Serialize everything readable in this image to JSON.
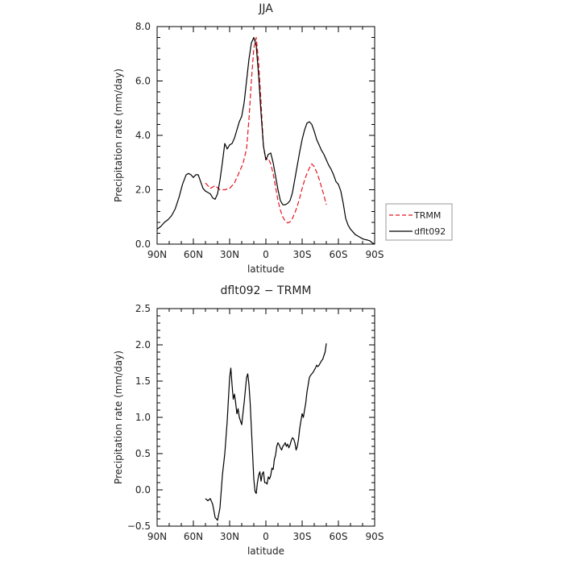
{
  "chart_data": [
    {
      "type": "line",
      "title": "JJA",
      "xlabel": "latitude",
      "ylabel": "Precipitation rate  (mm/day)",
      "x_tick_labels": [
        "90N",
        "60N",
        "30N",
        "0",
        "30S",
        "60S",
        "90S"
      ],
      "x_ticks": [
        -90,
        -60,
        -30,
        0,
        30,
        60,
        90
      ],
      "xlim": [
        -90,
        90
      ],
      "y_tick_labels": [
        "0.0",
        "2.0",
        "4.0",
        "6.0",
        "8.0"
      ],
      "y_ticks": [
        0,
        2,
        4,
        6,
        8
      ],
      "ylim": [
        0,
        8
      ],
      "legend": [
        "TRMM",
        "dflt092"
      ],
      "series": [
        {
          "name": "TRMM",
          "style": "dashed",
          "color": "#e8141e",
          "x": [
            -50,
            -46,
            -42,
            -38,
            -34,
            -30,
            -26,
            -22,
            -19,
            -16,
            -14,
            -12,
            -10,
            -8,
            -6,
            -4,
            -2,
            0,
            2,
            4,
            6,
            8,
            10,
            12,
            14,
            16,
            18,
            20,
            22,
            24,
            26,
            28,
            30,
            32,
            34,
            36,
            38,
            40,
            42,
            44,
            46,
            48,
            50
          ],
          "y": [
            2.25,
            2.05,
            2.15,
            2.0,
            2.0,
            2.05,
            2.25,
            2.65,
            2.95,
            3.5,
            4.6,
            6.0,
            7.2,
            7.6,
            6.7,
            5.2,
            3.6,
            3.1,
            3.15,
            2.95,
            2.6,
            2.1,
            1.6,
            1.25,
            1.0,
            0.85,
            0.78,
            0.82,
            0.95,
            1.15,
            1.4,
            1.7,
            2.05,
            2.35,
            2.6,
            2.8,
            2.95,
            2.85,
            2.65,
            2.4,
            2.1,
            1.8,
            1.45
          ]
        },
        {
          "name": "dflt092",
          "style": "solid",
          "color": "#000000",
          "x": [
            -90,
            -87,
            -84,
            -81,
            -78,
            -75,
            -72,
            -69,
            -66,
            -64,
            -62,
            -60,
            -58,
            -56,
            -54,
            -52,
            -50,
            -48,
            -46,
            -44,
            -42,
            -40,
            -38,
            -36,
            -34,
            -32,
            -30,
            -28,
            -26,
            -24,
            -22,
            -20,
            -18,
            -16,
            -14,
            -12,
            -10,
            -8,
            -6,
            -4,
            -2,
            0,
            2,
            4,
            6,
            8,
            10,
            12,
            14,
            16,
            18,
            20,
            22,
            24,
            26,
            28,
            30,
            32,
            34,
            36,
            38,
            40,
            42,
            44,
            46,
            48,
            50,
            52,
            54,
            56,
            58,
            60,
            62,
            64,
            66,
            68,
            70,
            72,
            74,
            76,
            78,
            80,
            82,
            84,
            86,
            88,
            90
          ],
          "y": [
            0.55,
            0.65,
            0.8,
            0.9,
            1.05,
            1.3,
            1.7,
            2.2,
            2.55,
            2.6,
            2.55,
            2.45,
            2.55,
            2.55,
            2.3,
            2.05,
            1.95,
            1.9,
            1.85,
            1.7,
            1.65,
            1.85,
            2.35,
            3.0,
            3.7,
            3.5,
            3.65,
            3.7,
            3.9,
            4.2,
            4.5,
            4.7,
            5.2,
            6.0,
            6.8,
            7.4,
            7.6,
            7.3,
            6.2,
            4.8,
            3.6,
            3.1,
            3.3,
            3.35,
            3.0,
            2.5,
            2.0,
            1.6,
            1.45,
            1.45,
            1.5,
            1.6,
            1.9,
            2.4,
            2.9,
            3.4,
            3.85,
            4.2,
            4.45,
            4.5,
            4.4,
            4.15,
            3.85,
            3.65,
            3.45,
            3.3,
            3.1,
            2.9,
            2.75,
            2.55,
            2.3,
            2.2,
            1.95,
            1.5,
            0.95,
            0.7,
            0.55,
            0.45,
            0.35,
            0.3,
            0.25,
            0.2,
            0.17,
            0.15,
            0.12,
            0.05,
            0.0
          ]
        }
      ]
    },
    {
      "type": "line",
      "title": "dflt092 − TRMM",
      "xlabel": "latitude",
      "ylabel": "Precipitation rate  (mm/day)",
      "x_tick_labels": [
        "90N",
        "60N",
        "30N",
        "0",
        "30S",
        "60S",
        "90S"
      ],
      "x_ticks": [
        -90,
        -60,
        -30,
        0,
        30,
        60,
        90
      ],
      "xlim": [
        -90,
        90
      ],
      "y_tick_labels": [
        "−0.5",
        "0.0",
        "0.5",
        "1.0",
        "1.5",
        "2.0",
        "2.5"
      ],
      "y_ticks": [
        -0.5,
        0,
        0.5,
        1.0,
        1.5,
        2.0,
        2.5
      ],
      "ylim": [
        -0.5,
        2.5
      ],
      "series": [
        {
          "style": "solid",
          "color": "#000000",
          "x": [
            -50,
            -48,
            -46,
            -44,
            -42,
            -40,
            -38,
            -36,
            -34,
            -32,
            -30,
            -29,
            -28,
            -27,
            -26,
            -25,
            -24,
            -23,
            -22,
            -20,
            -18,
            -16,
            -15,
            -14,
            -13,
            -12,
            -11,
            -10,
            -9,
            -8,
            -7,
            -6,
            -5,
            -4,
            -3,
            -2,
            -1,
            0,
            1,
            2,
            3,
            4,
            5,
            6,
            7,
            8,
            9,
            10,
            11,
            12,
            13,
            14,
            15,
            16,
            17,
            18,
            19,
            20,
            21,
            22,
            23,
            24,
            25,
            26,
            27,
            28,
            29,
            30,
            31,
            32,
            33,
            34,
            35,
            36,
            37,
            38,
            39,
            40,
            41,
            42,
            43,
            44,
            45,
            46,
            47,
            48,
            49,
            50
          ],
          "y": [
            -0.12,
            -0.15,
            -0.12,
            -0.2,
            -0.38,
            -0.42,
            -0.25,
            0.2,
            0.5,
            0.95,
            1.55,
            1.68,
            1.45,
            1.25,
            1.32,
            1.2,
            1.05,
            1.12,
            1.0,
            0.9,
            1.2,
            1.55,
            1.6,
            1.45,
            1.2,
            0.85,
            0.5,
            0.15,
            -0.02,
            -0.05,
            0.1,
            0.2,
            0.25,
            0.12,
            0.22,
            0.25,
            0.1,
            0.1,
            0.08,
            0.18,
            0.15,
            0.2,
            0.3,
            0.28,
            0.42,
            0.48,
            0.6,
            0.65,
            0.62,
            0.58,
            0.55,
            0.6,
            0.62,
            0.65,
            0.6,
            0.63,
            0.58,
            0.62,
            0.68,
            0.72,
            0.7,
            0.65,
            0.55,
            0.6,
            0.7,
            0.85,
            0.95,
            1.05,
            1.0,
            1.1,
            1.2,
            1.35,
            1.45,
            1.55,
            1.58,
            1.6,
            1.62,
            1.65,
            1.68,
            1.72,
            1.7,
            1.72,
            1.75,
            1.78,
            1.8,
            1.85,
            1.9,
            2.02
          ]
        }
      ]
    }
  ]
}
